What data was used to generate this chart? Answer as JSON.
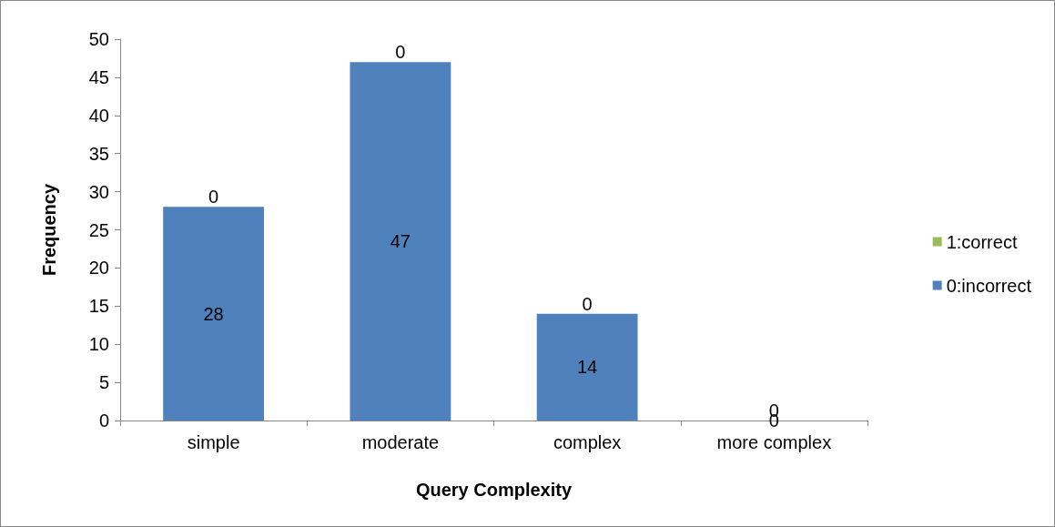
{
  "chart_data": {
    "type": "bar",
    "xlabel": "Query Complexity",
    "ylabel": "Frequency",
    "categories": [
      "simple",
      "moderate",
      "complex",
      "more complex"
    ],
    "series": [
      {
        "name": "0:incorrect",
        "color": "#4f81bd",
        "values": [
          28,
          47,
          14,
          0
        ]
      },
      {
        "name": "1:correct",
        "color": "#9bbb59",
        "values": [
          0,
          0,
          0,
          0
        ]
      }
    ],
    "stacked": true,
    "ylim": [
      0,
      50
    ],
    "yticks": [
      0,
      5,
      10,
      15,
      20,
      25,
      30,
      35,
      40,
      45,
      50
    ],
    "legend": "right",
    "data_labels": true
  }
}
